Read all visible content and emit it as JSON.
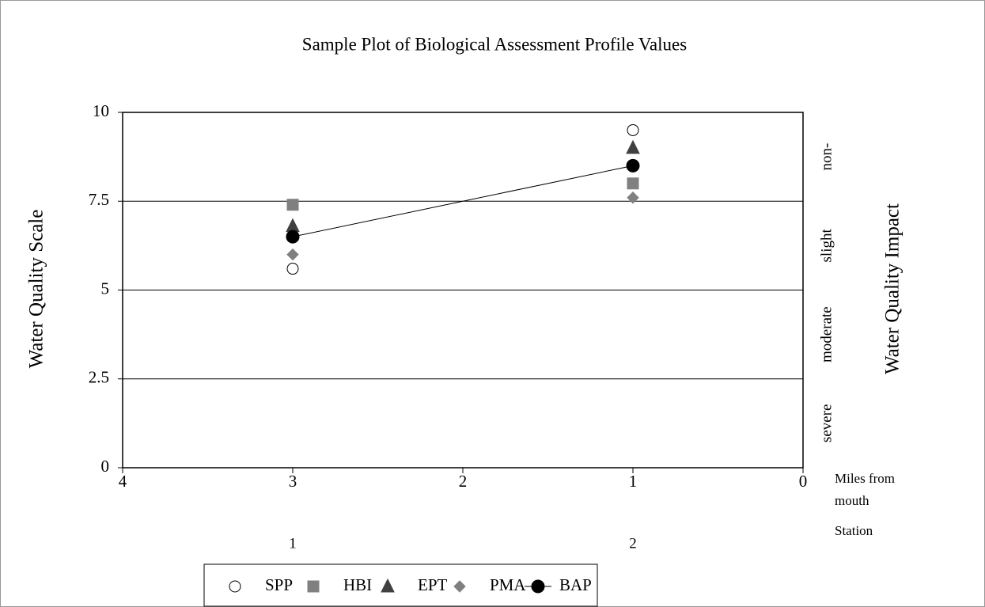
{
  "chart_data": {
    "type": "scatter",
    "title": "Sample Plot of Biological Assessment Profile Values",
    "ylabel": "Water Quality Scale",
    "y2label": "Water Quality Impact",
    "xlabel_lines": [
      "Miles from",
      "mouth"
    ],
    "xlim": [
      4,
      0
    ],
    "xticks": [
      4,
      3,
      2,
      1,
      0
    ],
    "ylim": [
      0,
      10
    ],
    "yticks": [
      0,
      2.5,
      5,
      7.5,
      10
    ],
    "grid": true,
    "impact_zones": [
      "severe",
      "moderate",
      "slight",
      "non-"
    ],
    "stations": {
      "title": "Station",
      "x": [
        3,
        1
      ],
      "labels": [
        "1",
        "2"
      ]
    },
    "x": [
      3,
      1
    ],
    "series": [
      {
        "name": "SPP",
        "marker": "circle-open",
        "color": "#ffffff",
        "values": [
          5.6,
          9.5
        ]
      },
      {
        "name": "HBI",
        "marker": "square",
        "color": "#808080",
        "values": [
          7.4,
          8.0
        ]
      },
      {
        "name": "EPT",
        "marker": "triangle",
        "color": "#404040",
        "values": [
          6.8,
          9.0
        ]
      },
      {
        "name": "PMA",
        "marker": "diamond",
        "color": "#808080",
        "values": [
          6.0,
          7.6
        ]
      },
      {
        "name": "BAP",
        "marker": "circle",
        "color": "#000000",
        "line": true,
        "values": [
          6.5,
          8.5
        ]
      }
    ],
    "legend": "bottom"
  }
}
